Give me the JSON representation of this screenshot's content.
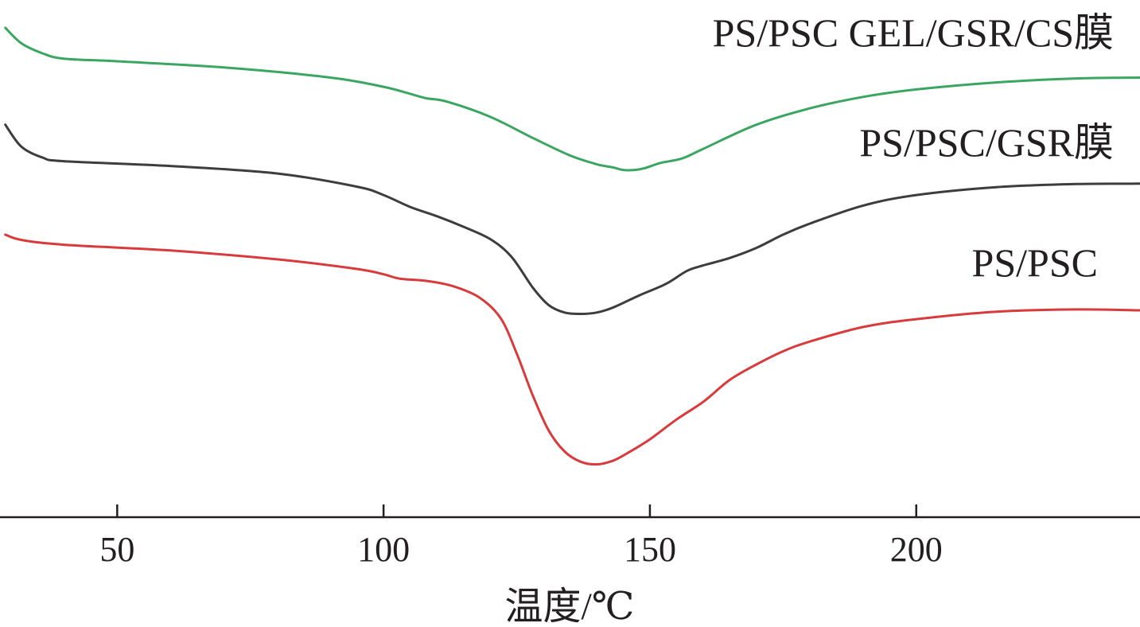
{
  "chart_data": {
    "type": "line",
    "title": "",
    "xlabel": "温度/℃",
    "ylabel": "",
    "xlim": [
      28,
      242
    ],
    "ylim": [
      0,
      100
    ],
    "x_ticks": [
      50,
      100,
      150,
      200
    ],
    "x_tick_labels": [
      "50",
      "100",
      "150",
      "200"
    ],
    "grid": false,
    "y_axis_shown": false,
    "series": [
      {
        "name": "PS/PSC GEL/GSR/CS膜",
        "color": "#3aa661",
        "points": [
          [
            29,
            100
          ],
          [
            32,
            96.5
          ],
          [
            36,
            94.2
          ],
          [
            40,
            93.0
          ],
          [
            50,
            92.4
          ],
          [
            70,
            91.0
          ],
          [
            90,
            88.7
          ],
          [
            100,
            86.6
          ],
          [
            105,
            85.0
          ],
          [
            108,
            84.0
          ],
          [
            112,
            83.2
          ],
          [
            120,
            79.8
          ],
          [
            128,
            75.0
          ],
          [
            135,
            71.0
          ],
          [
            140,
            69.0
          ],
          [
            143,
            68.3
          ],
          [
            145,
            67.7
          ],
          [
            147,
            67.7
          ],
          [
            149,
            68.1
          ],
          [
            152,
            69.3
          ],
          [
            156,
            70.3
          ],
          [
            160,
            72.5
          ],
          [
            170,
            78.0
          ],
          [
            180,
            81.7
          ],
          [
            190,
            84.3
          ],
          [
            200,
            86.0
          ],
          [
            215,
            87.6
          ],
          [
            230,
            88.5
          ],
          [
            242,
            88.7
          ]
        ]
      },
      {
        "name": "PS/PSC/GSR膜",
        "color": "#3d3d3f",
        "points": [
          [
            29,
            78.0
          ],
          [
            32,
            73.0
          ],
          [
            36,
            70.5
          ],
          [
            40,
            69.7
          ],
          [
            60,
            68.6
          ],
          [
            80,
            66.9
          ],
          [
            95,
            63.9
          ],
          [
            100,
            62.0
          ],
          [
            105,
            59.3
          ],
          [
            110,
            57.2
          ],
          [
            115,
            54.8
          ],
          [
            120,
            52.0
          ],
          [
            124,
            48.0
          ],
          [
            128,
            41.0
          ],
          [
            131,
            37.0
          ],
          [
            134,
            35.3
          ],
          [
            137,
            35.0
          ],
          [
            140,
            35.3
          ],
          [
            143,
            36.4
          ],
          [
            148,
            39.2
          ],
          [
            153,
            41.8
          ],
          [
            157,
            44.8
          ],
          [
            160,
            46.0
          ],
          [
            165,
            47.7
          ],
          [
            170,
            50.0
          ],
          [
            175,
            53.0
          ],
          [
            180,
            55.5
          ],
          [
            190,
            59.6
          ],
          [
            200,
            62.0
          ],
          [
            215,
            63.8
          ],
          [
            230,
            64.5
          ],
          [
            242,
            64.6
          ]
        ]
      },
      {
        "name": "PS/PSC",
        "color": "#d93a3b",
        "points": [
          [
            29,
            53.0
          ],
          [
            32,
            51.8
          ],
          [
            40,
            50.7
          ],
          [
            60,
            49.4
          ],
          [
            80,
            47.4
          ],
          [
            95,
            45.2
          ],
          [
            100,
            44.0
          ],
          [
            103,
            43.0
          ],
          [
            108,
            42.5
          ],
          [
            113,
            41.3
          ],
          [
            118,
            38.7
          ],
          [
            122,
            34.0
          ],
          [
            125,
            26.0
          ],
          [
            128,
            16.5
          ],
          [
            131,
            8.5
          ],
          [
            134,
            3.7
          ],
          [
            137,
            1.4
          ],
          [
            140,
            0.8
          ],
          [
            143,
            1.6
          ],
          [
            146,
            3.5
          ],
          [
            150,
            6.5
          ],
          [
            155,
            11.0
          ],
          [
            160,
            15.0
          ],
          [
            165,
            20.0
          ],
          [
            170,
            23.5
          ],
          [
            175,
            26.5
          ],
          [
            180,
            28.7
          ],
          [
            190,
            32.0
          ],
          [
            200,
            33.8
          ],
          [
            215,
            35.5
          ],
          [
            230,
            36.0
          ],
          [
            242,
            35.8
          ]
        ]
      }
    ]
  }
}
